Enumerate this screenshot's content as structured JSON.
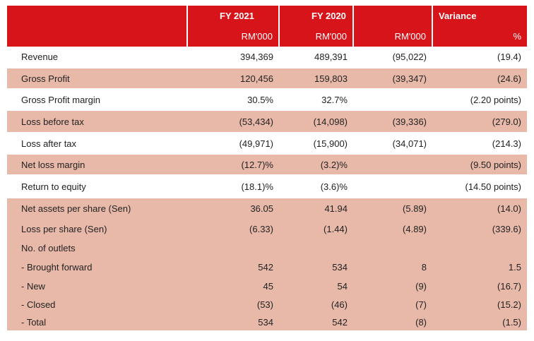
{
  "table": {
    "header": [
      [
        null,
        "FY 2021",
        "FY 2020",
        null,
        "Variance"
      ],
      [
        null,
        "RM'000",
        "RM'000",
        "RM'000",
        "%"
      ]
    ],
    "rows": [
      [
        "Revenue",
        "394,369",
        "489,391",
        "(95,022)",
        "(19.4)"
      ],
      [
        "Gross Profit",
        "120,456",
        "159,803",
        "(39,347)",
        "(24.6)"
      ],
      [
        "Gross Profit margin",
        "30.5%",
        "32.7%",
        null,
        "(2.20 points)"
      ],
      [
        "Loss before tax",
        "(53,434)",
        "(14,098)",
        "(39,336)",
        "(279.0)"
      ],
      [
        "Loss after tax",
        "(49,971)",
        "(15,900)",
        "(34,071)",
        "(214.3)"
      ],
      [
        "Net loss margin",
        "(12.7)%",
        "(3.2)%",
        null,
        "(9.50 points)"
      ],
      [
        "Return to equity",
        "(18.1)%",
        "(3.6)%",
        null,
        "(14.50 points)"
      ],
      [
        "Net assets per share (Sen)",
        "36.05",
        "41.94",
        "(5.89)",
        "(14.0)"
      ],
      [
        "Loss per share (Sen)",
        "(6.33)",
        "(1.44)",
        "(4.89)",
        "(339.6)"
      ],
      [
        "No. of outlets",
        null,
        null,
        null,
        null
      ],
      [
        "- Brought forward",
        "542",
        "534",
        "8",
        "1.5"
      ],
      [
        "- New",
        "45",
        "54",
        "(9)",
        "(16.7)"
      ],
      [
        "- Closed",
        "(53)",
        "(46)",
        "(7)",
        "(15.2)"
      ],
      [
        "- Total",
        "534",
        "542",
        "(8)",
        "(1.5)"
      ]
    ]
  }
}
